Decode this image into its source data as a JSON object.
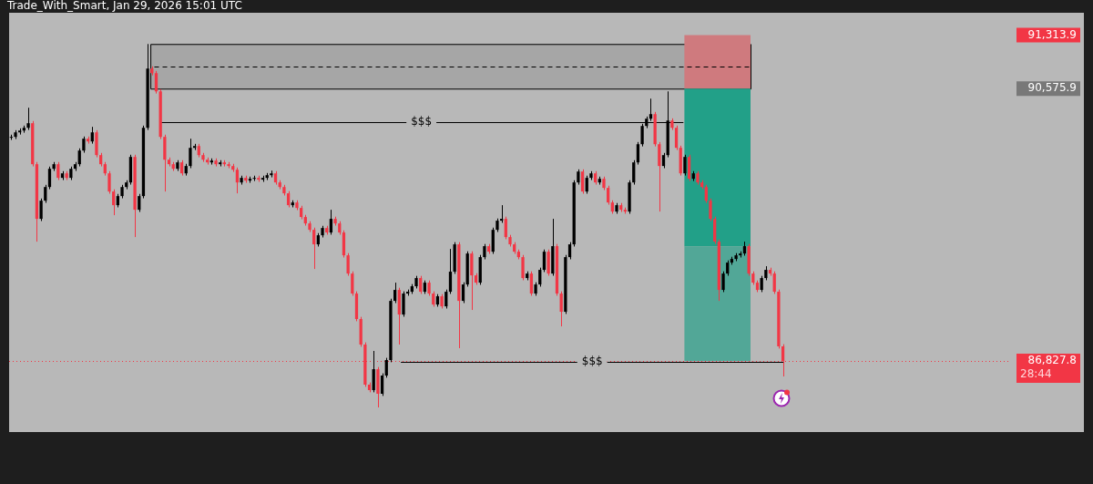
{
  "chart_data": {
    "type": "candlestick",
    "title": "Trade_With_Smart, Jan 29, 2026 15:01 UTC",
    "categories": [
      null,
      null,
      null,
      null,
      null,
      null,
      null,
      null,
      null,
      null,
      null,
      null,
      null,
      null,
      null,
      null,
      null,
      null,
      null,
      null,
      null,
      null,
      null,
      null,
      null,
      null,
      null,
      null,
      null,
      null,
      null,
      null,
      null,
      null,
      null,
      null,
      null,
      null,
      null,
      null,
      null,
      null,
      null,
      null,
      null,
      null,
      null,
      null,
      null,
      null,
      null,
      null,
      null,
      null,
      null,
      null,
      null,
      null,
      null,
      null,
      null,
      null,
      null,
      null,
      null,
      null,
      null,
      null,
      null,
      null,
      null,
      null,
      null,
      null,
      null,
      null,
      null,
      null,
      null,
      null,
      null,
      null,
      null,
      null,
      null,
      null,
      null,
      null,
      null,
      null,
      null,
      null,
      null,
      null,
      null,
      null,
      null,
      null,
      null,
      null,
      null,
      null,
      null,
      null,
      null,
      null,
      null,
      null,
      null,
      null,
      null,
      null,
      null,
      null,
      null,
      null,
      null,
      null,
      null,
      null,
      null,
      null,
      null,
      null,
      null,
      null,
      null,
      null,
      null,
      null,
      null,
      null,
      null,
      null,
      null,
      null,
      null,
      null,
      null,
      null,
      null,
      null,
      null,
      null,
      null,
      null,
      null,
      null,
      null,
      null,
      null,
      null,
      null,
      null,
      null,
      null,
      null,
      null,
      null,
      null,
      null,
      null,
      null,
      null,
      null,
      null,
      null,
      null,
      null,
      null,
      null,
      null,
      null,
      null,
      null,
      null,
      null,
      null,
      null,
      null,
      null,
      null,
      null,
      null,
      null,
      null,
      null,
      null,
      null,
      null,
      null,
      null,
      null,
      null,
      null,
      null,
      null,
      null,
      null,
      null,
      null,
      null,
      null,
      null,
      null,
      null,
      null,
      null,
      null,
      null,
      null,
      null,
      null,
      null,
      null,
      null,
      null,
      null,
      null,
      null,
      null,
      null,
      null,
      null,
      null,
      null,
      null,
      null,
      null,
      null,
      null,
      null,
      null,
      null,
      null
    ],
    "ohlc": [
      [
        89900,
        89942,
        89870,
        89912
      ],
      [
        89912,
        90004,
        89882,
        89974
      ],
      [
        89974,
        90029,
        89944,
        89999
      ],
      [
        89999,
        90067,
        89969,
        90037
      ],
      [
        90037,
        90313,
        90007,
        90100
      ],
      [
        90100,
        90130,
        89506,
        89536
      ],
      [
        89536,
        89566,
        88470,
        88784
      ],
      [
        88784,
        89064,
        88754,
        89034
      ],
      [
        89034,
        89252,
        89004,
        89222
      ],
      [
        89222,
        89503,
        89192,
        89473
      ],
      [
        89473,
        89566,
        89443,
        89536
      ],
      [
        89536,
        89566,
        89318,
        89348
      ],
      [
        89348,
        89440,
        89318,
        89410
      ],
      [
        89410,
        89440,
        89318,
        89348
      ],
      [
        89348,
        89503,
        89318,
        89473
      ],
      [
        89473,
        89566,
        89443,
        89536
      ],
      [
        89536,
        89754,
        89506,
        89724
      ],
      [
        89724,
        89917,
        89694,
        89887
      ],
      [
        89887,
        89917,
        89819,
        89849
      ],
      [
        89849,
        90050,
        89819,
        89974
      ],
      [
        89974,
        90004,
        89631,
        89661
      ],
      [
        89661,
        89691,
        89506,
        89536
      ],
      [
        89536,
        89566,
        89380,
        89410
      ],
      [
        89410,
        89440,
        89130,
        89160
      ],
      [
        89160,
        89190,
        88834,
        88972
      ],
      [
        88972,
        89127,
        88942,
        89097
      ],
      [
        89097,
        89252,
        89067,
        89222
      ],
      [
        89222,
        89315,
        89192,
        89285
      ],
      [
        89285,
        89666,
        89255,
        89636
      ],
      [
        89636,
        89666,
        88533,
        88909
      ],
      [
        88909,
        89127,
        88879,
        89097
      ],
      [
        89097,
        90067,
        89067,
        90037
      ],
      [
        90037,
        91190,
        90007,
        90852
      ],
      [
        90852,
        90882,
        90759,
        90789
      ],
      [
        90789,
        90819,
        90508,
        90538
      ],
      [
        90538,
        90568,
        89882,
        89912
      ],
      [
        89912,
        89942,
        89160,
        89598
      ],
      [
        89598,
        89628,
        89506,
        89536
      ],
      [
        89536,
        89566,
        89443,
        89473
      ],
      [
        89473,
        89591,
        89443,
        89561
      ],
      [
        89561,
        89591,
        89380,
        89410
      ],
      [
        89410,
        89541,
        89380,
        89511
      ],
      [
        89511,
        89887,
        89481,
        89761
      ],
      [
        89761,
        89816,
        89731,
        89786
      ],
      [
        89786,
        89816,
        89631,
        89661
      ],
      [
        89661,
        89691,
        89568,
        89598
      ],
      [
        89598,
        89628,
        89531,
        89561
      ],
      [
        89561,
        89616,
        89531,
        89586
      ],
      [
        89586,
        89616,
        89506,
        89536
      ],
      [
        89536,
        89591,
        89506,
        89561
      ],
      [
        89561,
        89591,
        89506,
        89536
      ],
      [
        89536,
        89566,
        89481,
        89511
      ],
      [
        89511,
        89541,
        89430,
        89460
      ],
      [
        89460,
        89490,
        89135,
        89285
      ],
      [
        89285,
        89378,
        89255,
        89348
      ],
      [
        89348,
        89378,
        89280,
        89310
      ],
      [
        89310,
        89365,
        89280,
        89335
      ],
      [
        89335,
        89378,
        89305,
        89348
      ],
      [
        89348,
        89378,
        89293,
        89323
      ],
      [
        89323,
        89378,
        89293,
        89348
      ],
      [
        89348,
        89415,
        89318,
        89385
      ],
      [
        89385,
        89448,
        89355,
        89410
      ],
      [
        89410,
        89440,
        89255,
        89285
      ],
      [
        89285,
        89315,
        89192,
        89222
      ],
      [
        89222,
        89252,
        89105,
        89135
      ],
      [
        89135,
        89165,
        88942,
        88972
      ],
      [
        88972,
        89039,
        88942,
        89009
      ],
      [
        89009,
        89039,
        88904,
        88934
      ],
      [
        88934,
        88964,
        88779,
        88809
      ],
      [
        88809,
        88839,
        88691,
        88721
      ],
      [
        88721,
        88751,
        88603,
        88633
      ],
      [
        88633,
        88663,
        88094,
        88433
      ],
      [
        88433,
        88588,
        88403,
        88558
      ],
      [
        88558,
        88688,
        88528,
        88658
      ],
      [
        88658,
        88688,
        88566,
        88596
      ],
      [
        88596,
        88909,
        88566,
        88784
      ],
      [
        88784,
        88814,
        88691,
        88721
      ],
      [
        88721,
        88751,
        88566,
        88596
      ],
      [
        88596,
        88626,
        88252,
        88282
      ],
      [
        88282,
        88312,
        88001,
        88031
      ],
      [
        88031,
        88061,
        87726,
        87756
      ],
      [
        87756,
        87786,
        87375,
        87405
      ],
      [
        87405,
        87435,
        87024,
        87054
      ],
      [
        87054,
        87084,
        86472,
        86502
      ],
      [
        86502,
        86532,
        86397,
        86427
      ],
      [
        86427,
        86966,
        86397,
        86715
      ],
      [
        86715,
        86745,
        86189,
        86377
      ],
      [
        86377,
        86658,
        86347,
        86628
      ],
      [
        86628,
        86871,
        86598,
        86841
      ],
      [
        86841,
        87685,
        86811,
        87655
      ],
      [
        87655,
        87906,
        87625,
        87806
      ],
      [
        87806,
        87836,
        87054,
        87467
      ],
      [
        87467,
        87786,
        87437,
        87756
      ],
      [
        87756,
        87811,
        87726,
        87781
      ],
      [
        87781,
        87886,
        87751,
        87856
      ],
      [
        87856,
        87999,
        87826,
        87969
      ],
      [
        87969,
        87999,
        87751,
        87781
      ],
      [
        87781,
        87936,
        87751,
        87906
      ],
      [
        87906,
        87936,
        87726,
        87756
      ],
      [
        87756,
        87786,
        87575,
        87605
      ],
      [
        87605,
        87748,
        87575,
        87718
      ],
      [
        87718,
        87748,
        87550,
        87580
      ],
      [
        87580,
        87811,
        87550,
        87781
      ],
      [
        87781,
        88370,
        87751,
        88057
      ],
      [
        88057,
        88463,
        88027,
        88433
      ],
      [
        88433,
        88463,
        87004,
        87655
      ],
      [
        87655,
        87911,
        87625,
        87881
      ],
      [
        87881,
        88337,
        87851,
        88307
      ],
      [
        88307,
        88337,
        87530,
        88006
      ],
      [
        88006,
        88036,
        87876,
        87906
      ],
      [
        87906,
        88287,
        87876,
        88257
      ],
      [
        88257,
        88438,
        88227,
        88408
      ],
      [
        88408,
        88438,
        88302,
        88332
      ],
      [
        88332,
        88663,
        88302,
        88633
      ],
      [
        88633,
        88789,
        88603,
        88759
      ],
      [
        88759,
        88972,
        88729,
        88784
      ],
      [
        88784,
        88814,
        88503,
        88533
      ],
      [
        88533,
        88563,
        88403,
        88433
      ],
      [
        88433,
        88463,
        88302,
        88332
      ],
      [
        88332,
        88362,
        88227,
        88257
      ],
      [
        88257,
        88287,
        87939,
        87969
      ],
      [
        87969,
        88061,
        87939,
        88031
      ],
      [
        88031,
        88061,
        87726,
        87756
      ],
      [
        87756,
        87911,
        87726,
        87881
      ],
      [
        87881,
        88112,
        87851,
        88082
      ],
      [
        88082,
        88362,
        88052,
        88332
      ],
      [
        88332,
        88362,
        88001,
        88031
      ],
      [
        88031,
        88784,
        88001,
        88408
      ],
      [
        88408,
        88438,
        87726,
        87756
      ],
      [
        87756,
        87786,
        87304,
        87505
      ],
      [
        87505,
        88287,
        87475,
        88257
      ],
      [
        88257,
        88463,
        88227,
        88433
      ],
      [
        88433,
        89315,
        88403,
        89285
      ],
      [
        89285,
        89465,
        89255,
        89435
      ],
      [
        89435,
        89465,
        89130,
        89160
      ],
      [
        89160,
        89378,
        89130,
        89348
      ],
      [
        89348,
        89440,
        89318,
        89410
      ],
      [
        89410,
        89440,
        89255,
        89285
      ],
      [
        89285,
        89365,
        89255,
        89335
      ],
      [
        89335,
        89365,
        89180,
        89210
      ],
      [
        89210,
        89240,
        88979,
        89009
      ],
      [
        89009,
        89039,
        88854,
        88884
      ],
      [
        88884,
        89002,
        88854,
        88972
      ],
      [
        88972,
        89002,
        88879,
        88909
      ],
      [
        88909,
        88939,
        88854,
        88884
      ],
      [
        88884,
        89315,
        88854,
        89285
      ],
      [
        89285,
        89591,
        89255,
        89561
      ],
      [
        89561,
        89841,
        89531,
        89811
      ],
      [
        89811,
        90092,
        89781,
        90062
      ],
      [
        90062,
        90192,
        90032,
        90162
      ],
      [
        90162,
        90438,
        90132,
        90225
      ],
      [
        90225,
        90255,
        89781,
        89811
      ],
      [
        89811,
        89841,
        88884,
        89511
      ],
      [
        89511,
        89691,
        89481,
        89661
      ],
      [
        89661,
        90538,
        89631,
        90137
      ],
      [
        90137,
        90167,
        90007,
        90037
      ],
      [
        90037,
        90067,
        89731,
        89761
      ],
      [
        89761,
        89791,
        89380,
        89410
      ],
      [
        89410,
        89666,
        89380,
        89636
      ],
      [
        89636,
        89666,
        89305,
        89335
      ],
      [
        89335,
        89440,
        89305,
        89410
      ],
      [
        89410,
        89440,
        89255,
        89285
      ],
      [
        89285,
        89315,
        89192,
        89222
      ],
      [
        89222,
        89252,
        89004,
        89034
      ],
      [
        89034,
        89064,
        88754,
        88784
      ],
      [
        88784,
        88814,
        88440,
        88470
      ],
      [
        88470,
        88500,
        87655,
        87806
      ],
      [
        87806,
        88061,
        87776,
        88031
      ],
      [
        88031,
        88212,
        88001,
        88182
      ],
      [
        88182,
        88262,
        88152,
        88232
      ],
      [
        88232,
        88312,
        88202,
        88282
      ],
      [
        88282,
        88337,
        88252,
        88307
      ],
      [
        88307,
        88470,
        88277,
        88408
      ],
      [
        88408,
        88438,
        88001,
        88031
      ],
      [
        88031,
        88061,
        87876,
        87906
      ],
      [
        87906,
        87936,
        87776,
        87806
      ],
      [
        87806,
        87999,
        87776,
        87969
      ],
      [
        87969,
        88132,
        87939,
        88082
      ],
      [
        88082,
        88112,
        88001,
        88031
      ],
      [
        88031,
        88061,
        87751,
        87781
      ],
      [
        87781,
        87811,
        86999,
        87029
      ],
      [
        87029,
        87059,
        86615,
        86828
      ],
      null,
      null,
      null,
      null,
      null,
      null,
      null,
      null,
      null,
      null,
      null,
      null,
      null,
      null,
      null,
      null,
      null,
      null,
      null,
      null,
      null,
      null,
      null,
      null,
      null,
      null,
      null,
      null,
      null,
      null,
      null,
      null,
      null,
      null,
      null,
      null,
      null,
      null,
      null,
      null,
      null,
      null,
      null,
      null,
      null,
      null,
      null,
      null,
      null,
      null,
      null,
      null,
      null
    ],
    "ylim": [
      85850,
      91620
    ],
    "yticks": [
      {
        "value": 91313.9,
        "label": "91,313.9"
      },
      {
        "value": 90575.9,
        "label": "90,575.9"
      },
      {
        "value": 86827.8,
        "label": "86,827.8"
      }
    ],
    "tick_labels": "y",
    "bands": [
      {
        "axis": "y",
        "from": 90575.9,
        "to": 91190,
        "color": "#a6a6a6"
      },
      {
        "axis": "y",
        "from": 90575.9,
        "to": 91313.9,
        "color": "#cf7a7e"
      },
      {
        "axis": "y",
        "from": 88407,
        "to": 90575.9,
        "color": "#22a088"
      },
      {
        "axis": "y",
        "from": 86827.8,
        "to": 88407,
        "color": "#52a797"
      }
    ],
    "ref_lines": [
      {
        "axis": "y",
        "value": 90112,
        "label": "$$$",
        "color": "#000000",
        "line_style": "solid"
      },
      {
        "axis": "y",
        "value": 86816,
        "label": "$$$",
        "color": "#000000",
        "line_style": "solid"
      },
      {
        "axis": "y",
        "value": 90886,
        "color": "#000000",
        "line_style": "dashed"
      },
      {
        "axis": "y",
        "value": 86827.8,
        "color": "#f23645",
        "line_style": "dotted"
      }
    ],
    "annotations": [
      "28:44"
    ]
  }
}
